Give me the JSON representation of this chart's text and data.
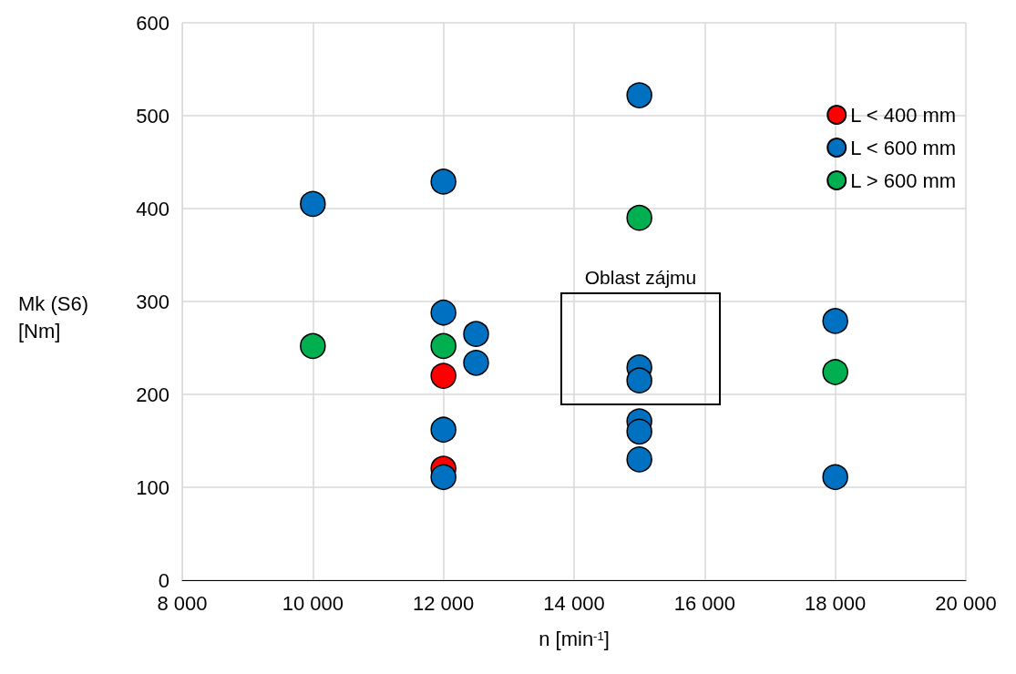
{
  "chart_data": {
    "type": "scatter",
    "xlabel": "n [min$^{-1}$]",
    "ylabel": "Mk (S6) [Nm]",
    "xlim": [
      8000,
      20000
    ],
    "xticks": [
      {
        "value": 8000,
        "label": "8 000"
      },
      {
        "value": 10000,
        "label": "10 000"
      },
      {
        "value": 12000,
        "label": "12 000"
      },
      {
        "value": 14000,
        "label": "14 000"
      },
      {
        "value": 16000,
        "label": "16 000"
      },
      {
        "value": 18000,
        "label": "18 000"
      },
      {
        "value": 20000,
        "label": "20 000"
      }
    ],
    "ylim": [
      0,
      600
    ],
    "yticks": [
      0,
      100,
      200,
      300,
      400,
      500,
      600
    ],
    "grid": true,
    "legend": "top right",
    "marker": "circle",
    "annotations": [
      "Oblast zájmu"
    ],
    "series": [
      {
        "name": "L < 400 mm",
        "color": "#ff0000",
        "x": [
          12000,
          12000
        ],
        "values": [
          220,
          120
        ]
      },
      {
        "name": "L < 600 mm",
        "color": "#0070c0",
        "x": [
          10000,
          12000,
          12000,
          12500,
          12500,
          12000,
          12000,
          15000,
          15000,
          15000,
          15000,
          15000,
          15000,
          18000,
          18000
        ],
        "values": [
          405,
          429,
          288,
          265,
          234,
          162,
          111,
          522,
          229,
          215,
          171,
          160,
          130,
          279,
          111
        ]
      },
      {
        "name": "L > 600 mm",
        "color": "#00b050",
        "x": [
          10000,
          12000,
          15000,
          18000
        ],
        "values": [
          252,
          252,
          390,
          224
        ]
      }
    ]
  }
}
